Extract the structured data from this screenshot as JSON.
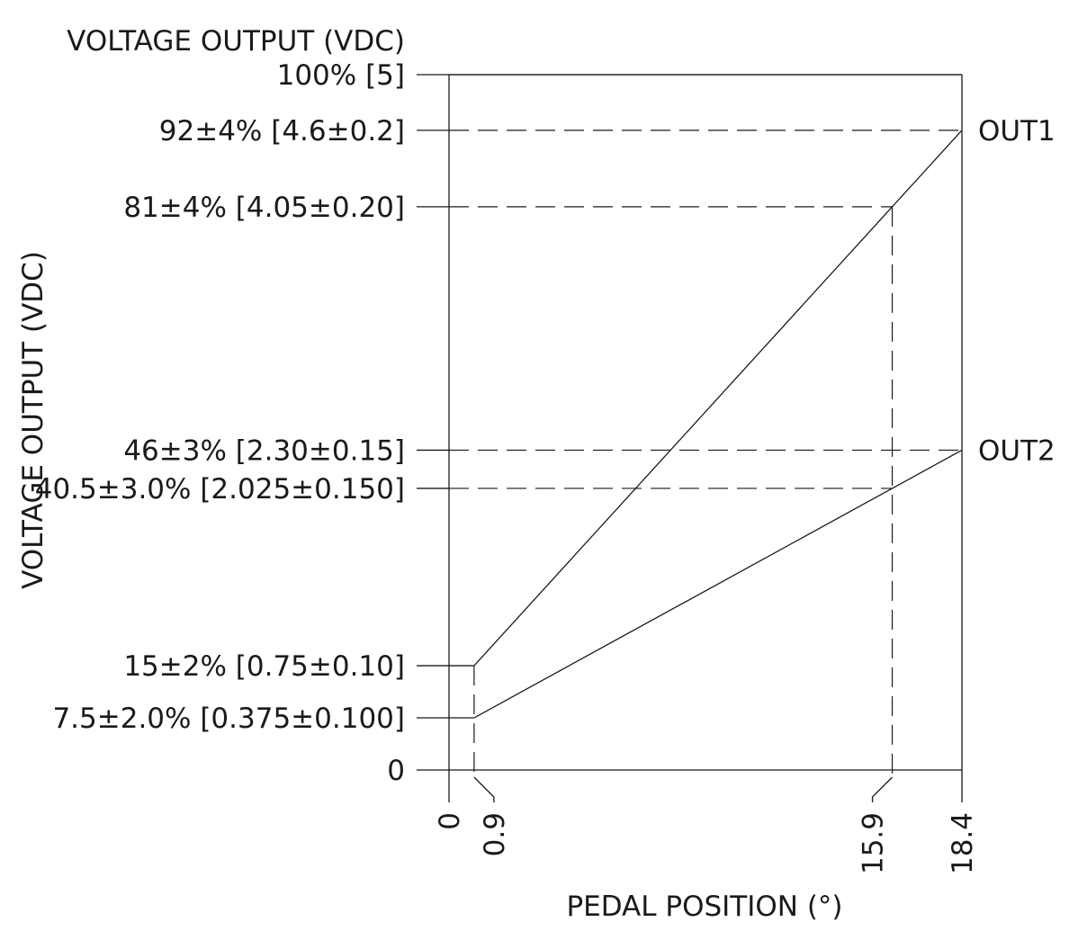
{
  "chart_data": {
    "type": "line",
    "title": "VOLTAGE OUTPUT (VDC)",
    "xlabel": "PEDAL POSITION (°)",
    "ylabel": "VOLTAGE OUTPUT (VDC)",
    "xlim": [
      0,
      18.4
    ],
    "ylim": [
      0,
      100
    ],
    "x_ticks": [
      {
        "value": 0,
        "label": "0"
      },
      {
        "value": 0.9,
        "label": "0.9"
      },
      {
        "value": 15.9,
        "label": "15.9"
      },
      {
        "value": 18.4,
        "label": "18.4"
      }
    ],
    "y_ticks": [
      {
        "value": 0,
        "label": "0"
      },
      {
        "value": 7.5,
        "label": "7.5±2.0% [0.375±0.100]"
      },
      {
        "value": 15,
        "label": "15±2% [0.75±0.10]"
      },
      {
        "value": 40.5,
        "label": "40.5±3.0% [2.025±0.150]"
      },
      {
        "value": 46,
        "label": "46±3% [2.30±0.15]"
      },
      {
        "value": 81,
        "label": "81±4% [4.05±0.20]"
      },
      {
        "value": 92,
        "label": "92±4% [4.6±0.2]"
      },
      {
        "value": 100,
        "label": "100% [5]"
      }
    ],
    "series": [
      {
        "name": "OUT1",
        "x": [
          0.9,
          15.9,
          18.4
        ],
        "y": [
          15,
          81,
          92
        ]
      },
      {
        "name": "OUT2",
        "x": [
          0.9,
          15.9,
          18.4
        ],
        "y": [
          7.5,
          40.5,
          46
        ]
      }
    ],
    "grid": false,
    "legend": "right"
  }
}
